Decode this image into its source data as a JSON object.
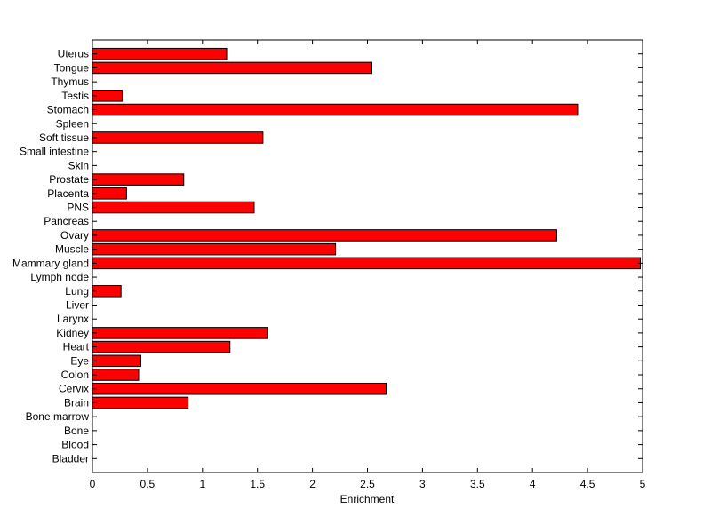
{
  "chart_data": {
    "type": "bar",
    "orientation": "horizontal",
    "categories": [
      "Uterus",
      "Tongue",
      "Thymus",
      "Testis",
      "Stomach",
      "Spleen",
      "Soft tissue",
      "Small intestine",
      "Skin",
      "Prostate",
      "Placenta",
      "PNS",
      "Pancreas",
      "Ovary",
      "Muscle",
      "Mammary gland",
      "Lymph node",
      "Lung",
      "Liver",
      "Larynx",
      "Kidney",
      "Heart",
      "Eye",
      "Colon",
      "Cervix",
      "Brain",
      "Bone marrow",
      "Bone",
      "Blood",
      "Bladder"
    ],
    "values": [
      1.22,
      2.54,
      0,
      0.27,
      4.41,
      0,
      1.55,
      0,
      0,
      0.83,
      0.31,
      1.47,
      0,
      4.22,
      2.21,
      4.98,
      0,
      0.26,
      0,
      0,
      1.59,
      1.25,
      0.44,
      0.42,
      2.67,
      0.87,
      0,
      0,
      0,
      0
    ],
    "xlabel": "Enrichment",
    "ylabel": "",
    "title": "",
    "xlim": [
      0,
      5
    ],
    "xticks": [
      "0",
      "0.5",
      "1",
      "1.5",
      "2",
      "2.5",
      "3",
      "3.5",
      "4",
      "4.5",
      "5"
    ],
    "grid": false,
    "bar_color": "#ff0000"
  }
}
